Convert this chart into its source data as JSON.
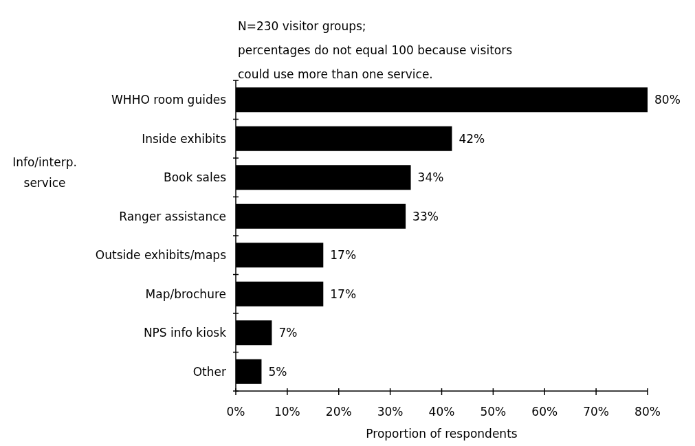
{
  "chart_data": {
    "type": "bar",
    "orientation": "horizontal",
    "annotations": [
      "N=230 visitor groups;",
      "percentages do not equal 100 because visitors could use more than one service."
    ],
    "ylabel": "Info/interp. service",
    "xlabel": "Proportion of respondents",
    "categories": [
      "WHHO room guides",
      "Inside exhibits",
      "Book sales",
      "Ranger assistance",
      "Outside exhibits/maps",
      "Map/brochure",
      "NPS info kiosk",
      "Other"
    ],
    "values": [
      80,
      42,
      34,
      33,
      17,
      17,
      7,
      5
    ],
    "value_labels": [
      "80%",
      "42%",
      "34%",
      "33%",
      "17%",
      "17%",
      "7%",
      "5%"
    ],
    "color": "#000000",
    "xlim": [
      0,
      80
    ],
    "xticks": [
      {
        "value": 0,
        "label": "0%"
      },
      {
        "value": 10,
        "label": "10%"
      },
      {
        "value": 20,
        "label": "20%"
      },
      {
        "value": 30,
        "label": "30%"
      },
      {
        "value": 40,
        "label": "40%"
      },
      {
        "value": 50,
        "label": "50%"
      },
      {
        "value": 60,
        "label": "60%"
      },
      {
        "value": 70,
        "label": "70%"
      },
      {
        "value": 80,
        "label": "80%"
      }
    ],
    "grid": false
  }
}
